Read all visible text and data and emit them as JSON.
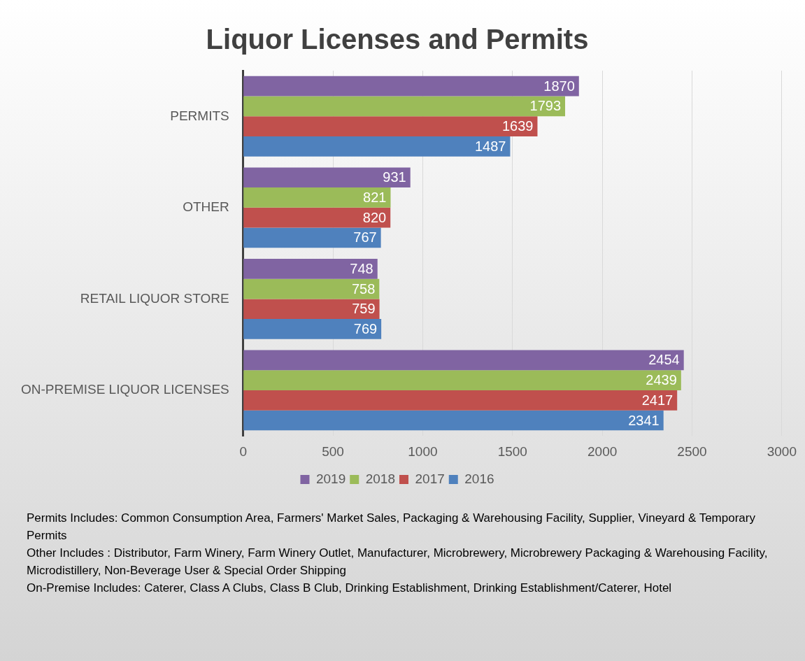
{
  "chart_data": {
    "type": "bar",
    "orientation": "horizontal",
    "title": "Liquor Licenses and Permits",
    "categories": [
      "PERMITS",
      "OTHER",
      "RETAIL LIQUOR STORE",
      "ON-PREMISE LIQUOR LICENSES"
    ],
    "series": [
      {
        "name": "2019",
        "color": "#8064a2",
        "values": [
          1870,
          931,
          748,
          2454
        ]
      },
      {
        "name": "2018",
        "color": "#9bbb59",
        "values": [
          1793,
          821,
          758,
          2439
        ]
      },
      {
        "name": "2017",
        "color": "#c0504d",
        "values": [
          1639,
          820,
          759,
          2417
        ]
      },
      {
        "name": "2016",
        "color": "#4f81bd",
        "values": [
          1487,
          767,
          769,
          2341
        ]
      }
    ],
    "xlim": [
      0,
      3000
    ],
    "xticks": [
      0,
      500,
      1000,
      1500,
      2000,
      2500,
      3000
    ],
    "grid": "x",
    "legend": "bottom",
    "data_labels": true,
    "annotations": [
      "Permits Includes: Common Consumption Area, Farmers' Market Sales, Packaging & Warehousing Facility, Supplier, Vineyard & Temporary Permits",
      "Other Includes : Distributor, Farm Winery,  Farm Winery Outlet, Manufacturer, Microbrewery, Microbrewery Packaging & Warehousing Facility, Microdistillery, Non-Beverage User & Special Order Shipping",
      "On-Premise Includes: Caterer, Class A Clubs, Class B Club, Drinking Establishment, Drinking Establishment/Caterer, Hotel"
    ]
  }
}
